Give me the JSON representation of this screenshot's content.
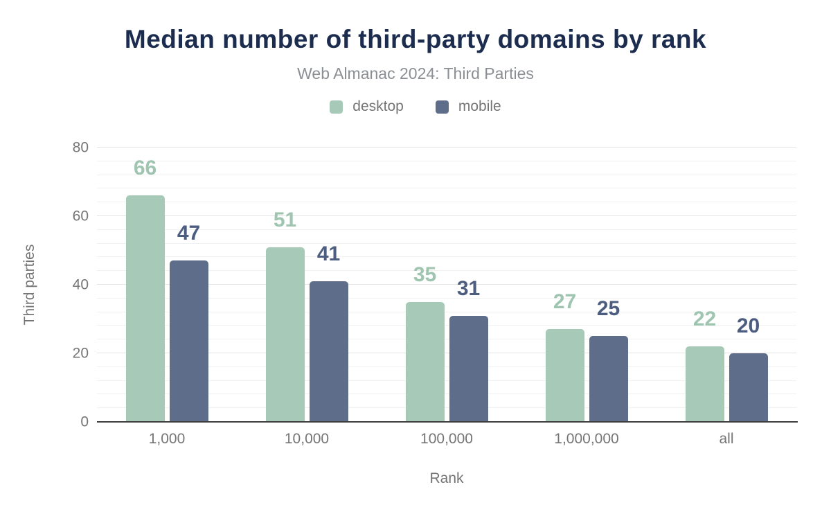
{
  "chart_data": {
    "type": "bar",
    "title": "Median number of third-party domains by rank",
    "subtitle": "Web Almanac 2024: Third Parties",
    "xlabel": "Rank",
    "ylabel": "Third parties",
    "categories": [
      "1,000",
      "10,000",
      "100,000",
      "1,000,000",
      "all"
    ],
    "series": [
      {
        "name": "desktop",
        "values": [
          66,
          51,
          35,
          27,
          22
        ],
        "color": "#a7c9b7",
        "label_color": "#9fc5b1"
      },
      {
        "name": "mobile",
        "values": [
          47,
          41,
          31,
          25,
          20
        ],
        "color": "#5e6e8a",
        "label_color": "#4c5d80"
      }
    ],
    "ylim": [
      0,
      80
    ],
    "yticks": [
      0,
      20,
      40,
      60,
      80
    ],
    "minor_grid_step": 4,
    "grid": "on",
    "legend_position": "top",
    "value_labels": "above bars"
  },
  "colors": {
    "title": "#1b2c4e",
    "subtitle": "#8b8f93",
    "axis_text": "#757575",
    "major_gridline": "#e4e4e4",
    "minor_gridline": "#f1f1f1",
    "baseline": "#3d3d3d",
    "background": "#ffffff"
  }
}
